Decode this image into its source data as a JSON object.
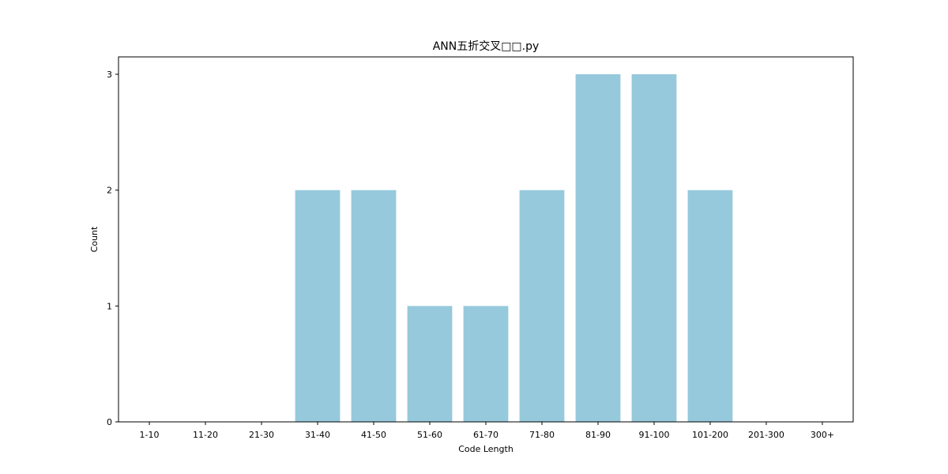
{
  "chart_data": {
    "type": "bar",
    "title": "ANN五折交叉□□.py",
    "xlabel": "Code Length",
    "ylabel": "Count",
    "categories": [
      "1-10",
      "11-20",
      "21-30",
      "31-40",
      "41-50",
      "51-60",
      "61-70",
      "71-80",
      "81-90",
      "91-100",
      "101-200",
      "201-300",
      "300+"
    ],
    "values": [
      0,
      0,
      0,
      2,
      2,
      1,
      1,
      2,
      3,
      3,
      2,
      0,
      0
    ],
    "yticks": [
      0,
      1,
      2,
      3
    ],
    "ylim": [
      0,
      3.15
    ],
    "bar_color": "#96c9dc",
    "grid": false,
    "legend": "none"
  }
}
